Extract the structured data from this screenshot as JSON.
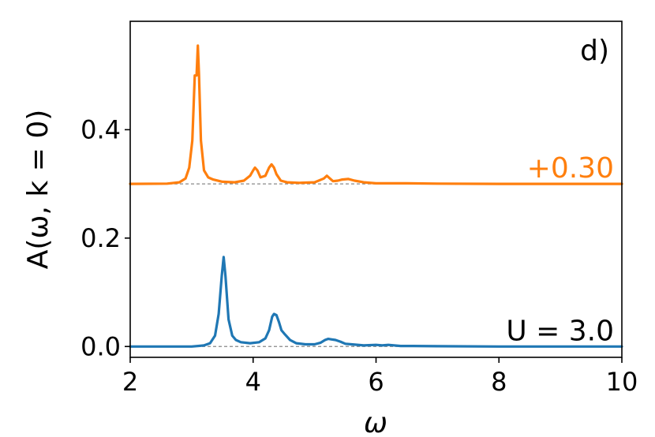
{
  "chart_data": {
    "type": "line",
    "panel_label": "d)",
    "xlabel": "ω",
    "ylabel": "A(ω, k = 0)",
    "xlim": [
      2,
      10
    ],
    "ylim": [
      -0.02,
      0.6
    ],
    "xticks": [
      "2",
      "4",
      "6",
      "8",
      "10"
    ],
    "yticks": [
      "0.0",
      "0.2",
      "0.4"
    ],
    "grid": false,
    "baseline_style": "dashed",
    "series": [
      {
        "color": "#1f77b4",
        "offset": 0.0,
        "annotation": "U = 3.0",
        "annotation_color": "#000000",
        "x": [
          2.0,
          3.0,
          3.2,
          3.3,
          3.38,
          3.44,
          3.49,
          3.52,
          3.55,
          3.6,
          3.66,
          3.72,
          3.8,
          3.95,
          4.1,
          4.2,
          4.26,
          4.31,
          4.34,
          4.38,
          4.42,
          4.46,
          4.52,
          4.6,
          4.7,
          4.85,
          5.0,
          5.1,
          5.17,
          5.22,
          5.28,
          5.34,
          5.42,
          5.5,
          5.6,
          5.8,
          6.0,
          6.1,
          6.2,
          6.4,
          6.6,
          7.0,
          8.0,
          9.0,
          10.0
        ],
        "y": [
          0.0,
          0.0,
          0.002,
          0.006,
          0.02,
          0.06,
          0.13,
          0.165,
          0.13,
          0.05,
          0.02,
          0.012,
          0.008,
          0.006,
          0.008,
          0.015,
          0.03,
          0.055,
          0.06,
          0.058,
          0.045,
          0.03,
          0.022,
          0.012,
          0.006,
          0.004,
          0.004,
          0.007,
          0.012,
          0.014,
          0.013,
          0.012,
          0.009,
          0.005,
          0.004,
          0.002,
          0.003,
          0.002,
          0.003,
          0.001,
          0.001,
          0.0005,
          0.0,
          0.0,
          0.0
        ]
      },
      {
        "color": "#ff7f0e",
        "offset": 0.3,
        "annotation": "+0.30",
        "annotation_color": "#ff7f0e",
        "x": [
          2.0,
          2.6,
          2.8,
          2.9,
          2.96,
          3.01,
          3.05,
          3.08,
          3.1,
          3.12,
          3.15,
          3.2,
          3.27,
          3.35,
          3.5,
          3.7,
          3.85,
          3.95,
          4.0,
          4.03,
          4.07,
          4.12,
          4.2,
          4.26,
          4.3,
          4.34,
          4.38,
          4.45,
          4.55,
          4.75,
          5.0,
          5.15,
          5.2,
          5.25,
          5.3,
          5.38,
          5.45,
          5.55,
          5.65,
          5.8,
          6.0,
          6.5,
          7.0,
          8.0,
          9.0,
          10.0
        ],
        "y": [
          0.0,
          0.0005,
          0.003,
          0.01,
          0.03,
          0.08,
          0.2,
          0.2,
          0.255,
          0.2,
          0.08,
          0.025,
          0.012,
          0.008,
          0.004,
          0.003,
          0.006,
          0.015,
          0.025,
          0.03,
          0.025,
          0.012,
          0.015,
          0.03,
          0.036,
          0.03,
          0.018,
          0.006,
          0.003,
          0.002,
          0.003,
          0.01,
          0.015,
          0.01,
          0.005,
          0.006,
          0.008,
          0.009,
          0.006,
          0.003,
          0.001,
          0.001,
          0.0005,
          0.0,
          0.0,
          0.0
        ]
      }
    ]
  }
}
